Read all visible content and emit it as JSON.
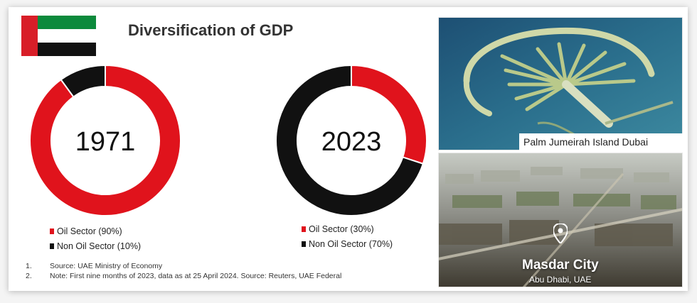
{
  "title": "Diversification of GDP",
  "colors": {
    "oil": "#e0131c",
    "non_oil": "#111111",
    "flag_green": "#0c8a3c",
    "flag_red": "#d81e28",
    "flag_black": "#111111"
  },
  "chart_data": [
    {
      "type": "pie",
      "title": "1971",
      "categories": [
        "Oil Sector (90%)",
        "Non Oil Sector (10%)"
      ],
      "values": [
        90,
        10
      ]
    },
    {
      "type": "pie",
      "title": "2023",
      "categories": [
        "Oil Sector (30%)",
        "Non Oil Sector (70%)"
      ],
      "values": [
        30,
        70
      ]
    }
  ],
  "notes": [
    {
      "num": "1.",
      "text": "Source: UAE Ministry of Economy"
    },
    {
      "num": "2.",
      "text": "Note: First nine months of 2023, data as at 25 April 2024. Source: Reuters, UAE Federal"
    }
  ],
  "photos": {
    "palm_caption": "Palm Jumeirah Island Dubai",
    "masdar_title": "Masdar City",
    "masdar_subtitle": "Abu Dhabi, UAE"
  },
  "icons": {
    "flag": "uae-flag-icon",
    "pin": "location-pin-icon"
  }
}
